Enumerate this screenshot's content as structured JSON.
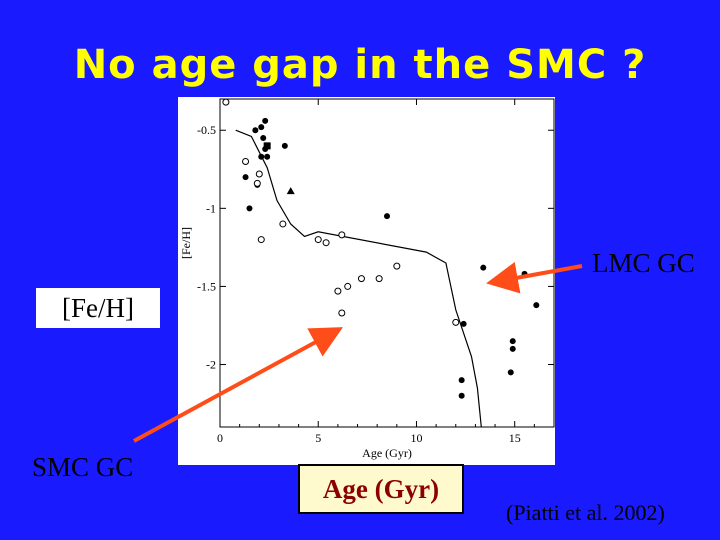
{
  "slide": {
    "title": "No age gap in the SMC ?",
    "lmc_label": "LMC GC",
    "feh_label": "[Fe/H]",
    "smc_label": "SMC GC",
    "age_label": "Age (Gyr)",
    "citation": "(Piatti et al. 2002)"
  },
  "colors": {
    "background": "#1a1aff",
    "title": "#ffff00",
    "arrow": "#ff4d1a"
  },
  "chart_data": {
    "type": "scatter",
    "xlabel": "Age (Gyr)",
    "ylabel": "[Fe/H]",
    "xlim": [
      0,
      17
    ],
    "ylim": [
      -2.4,
      -0.3
    ],
    "x_ticks": [
      0,
      5,
      10,
      15
    ],
    "y_ticks": [
      -0.5,
      -1,
      -1.5,
      -2
    ],
    "x_tick_labels": [
      "0",
      "5",
      "10",
      "15"
    ],
    "y_tick_labels": [
      "-0.5",
      "-1",
      "-1.5",
      "-2"
    ],
    "filled_circles": [
      [
        1.8,
        -0.5
      ],
      [
        2.1,
        -0.48
      ],
      [
        2.3,
        -0.44
      ],
      [
        2.2,
        -0.55
      ],
      [
        2.3,
        -0.62
      ],
      [
        2.1,
        -0.67
      ],
      [
        2.4,
        -0.67
      ],
      [
        1.3,
        -0.8
      ],
      [
        1.9,
        -0.85
      ],
      [
        1.5,
        -1.0
      ],
      [
        3.3,
        -0.6
      ],
      [
        8.5,
        -1.05
      ],
      [
        13.4,
        -1.38
      ],
      [
        15.5,
        -1.42
      ],
      [
        16.1,
        -1.62
      ],
      [
        12.4,
        -1.74
      ],
      [
        14.9,
        -1.85
      ],
      [
        14.9,
        -1.9
      ],
      [
        14.8,
        -2.05
      ],
      [
        12.3,
        -2.1
      ],
      [
        12.3,
        -2.2
      ]
    ],
    "open_circles": [
      [
        0.3,
        -0.32
      ],
      [
        1.3,
        -0.7
      ],
      [
        2.0,
        -0.78
      ],
      [
        1.9,
        -0.84
      ],
      [
        3.2,
        -1.1
      ],
      [
        2.1,
        -1.2
      ],
      [
        5.0,
        -1.2
      ],
      [
        5.4,
        -1.22
      ],
      [
        6.2,
        -1.17
      ],
      [
        6.5,
        -1.5
      ],
      [
        6.0,
        -1.53
      ],
      [
        7.2,
        -1.45
      ],
      [
        8.1,
        -1.45
      ],
      [
        9.0,
        -1.37
      ],
      [
        6.2,
        -1.67
      ],
      [
        12.0,
        -1.73
      ]
    ],
    "filled_squares": [
      [
        2.4,
        -0.6
      ]
    ],
    "filled_triangles": [
      [
        3.6,
        -0.89
      ]
    ],
    "model_curve": [
      [
        0.8,
        -0.5
      ],
      [
        1.6,
        -0.54
      ],
      [
        2.4,
        -0.74
      ],
      [
        2.9,
        -0.95
      ],
      [
        3.6,
        -1.1
      ],
      [
        4.3,
        -1.18
      ],
      [
        5.0,
        -1.15
      ],
      [
        10.5,
        -1.28
      ],
      [
        11.5,
        -1.35
      ],
      [
        12.0,
        -1.65
      ],
      [
        12.8,
        -1.95
      ],
      [
        13.1,
        -2.15
      ],
      [
        13.3,
        -2.4
      ]
    ]
  }
}
